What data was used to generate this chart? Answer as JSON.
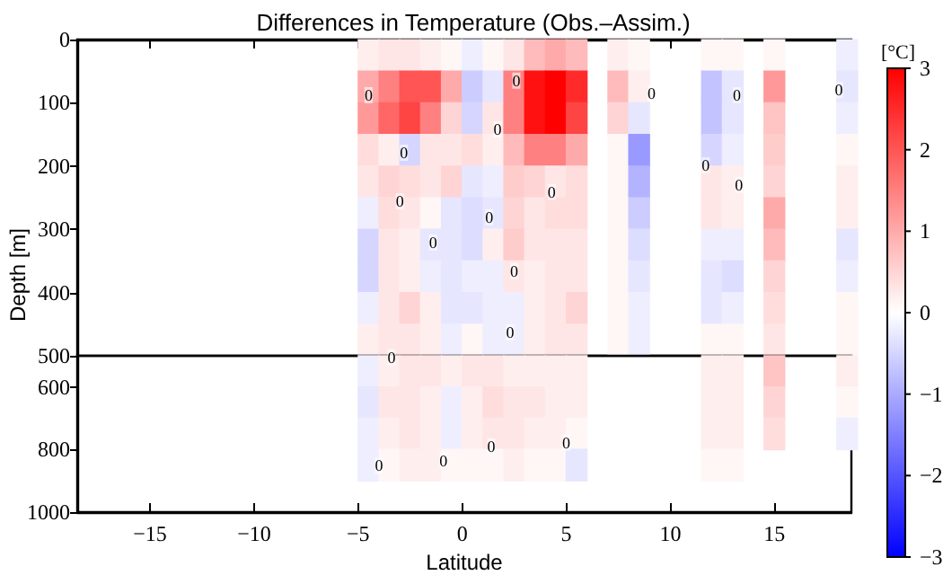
{
  "chart_data": [
    {
      "type": "scatter",
      "title": "Differences in Temperature (Obs.–Assim.)",
      "ylabel": "Depth [m]",
      "clabel": "[°C]",
      "marker": "square",
      "tick_labels": "y",
      "xlim": [
        -18.5,
        18.7
      ],
      "xticks": [
        -15,
        -10,
        -5,
        0,
        5,
        10,
        15
      ],
      "ylim": [
        500,
        0
      ],
      "yticks": [
        0,
        100,
        200,
        300,
        400,
        500
      ],
      "clim": [
        -3,
        3
      ],
      "cticks": [
        -3,
        -1,
        1,
        3
      ],
      "x": [
        -4.5,
        -3.5,
        -2.5,
        -1.5,
        -0.5,
        0.5,
        1.5,
        2.5,
        3.5,
        4.5,
        5.5,
        7.5,
        8.5,
        12,
        13,
        15,
        18.5,
        -4.5,
        -3.5,
        -2.5,
        -1.5,
        -0.5,
        0.5,
        1.5,
        2.5,
        3.5,
        4.5,
        5.5,
        7.5,
        8.5,
        12,
        13,
        15,
        18.5,
        -4.5,
        -3.5,
        -2.5,
        -1.5,
        -0.5,
        0.5,
        1.5,
        2.5,
        3.5,
        4.5,
        5.5,
        7.5,
        8.5,
        12,
        13,
        15,
        18.5,
        -4.5,
        -3.5,
        -2.5,
        -1.5,
        -0.5,
        0.5,
        1.5,
        2.5,
        3.5,
        4.5,
        5.5,
        7.5,
        8.5,
        12,
        13,
        15,
        18.5,
        -4.5,
        -3.5,
        -2.5,
        -1.5,
        -0.5,
        0.5,
        1.5,
        2.5,
        3.5,
        4.5,
        5.5,
        7.5,
        8.5,
        12,
        13,
        15,
        18.5,
        -4.5,
        -3.5,
        -2.5,
        -1.5,
        -0.5,
        0.5,
        1.5,
        2.5,
        3.5,
        4.5,
        5.5,
        7.5,
        8.5,
        12,
        13,
        15,
        18.5,
        -4.5,
        -3.5,
        -2.5,
        -1.5,
        -0.5,
        0.5,
        1.5,
        2.5,
        3.5,
        4.5,
        5.5,
        7.5,
        8.5,
        12,
        13,
        15,
        18.5,
        -4.5,
        -3.5,
        -2.5,
        -1.5,
        -0.5,
        0.5,
        1.5,
        2.5,
        3.5,
        4.5,
        5.5,
        7.5,
        8.5,
        12,
        13,
        15,
        18.5,
        -4.5,
        -3.5,
        -2.5,
        -1.5,
        -0.5,
        0.5,
        1.5,
        2.5,
        3.5,
        4.5,
        5.5,
        7.5,
        8.5,
        12,
        13,
        15,
        18.5,
        -4.5,
        -3.5,
        -2.5,
        -1.5,
        -0.5,
        0.5,
        1.5,
        2.5,
        3.5,
        4.5,
        5.5,
        7.5,
        8.5,
        12,
        13,
        15,
        18.5
      ],
      "values": [
        25,
        25,
        25,
        25,
        25,
        25,
        25,
        25,
        25,
        25,
        25,
        25,
        25,
        25,
        25,
        25,
        25,
        75,
        75,
        75,
        75,
        75,
        75,
        75,
        75,
        75,
        75,
        75,
        75,
        75,
        75,
        75,
        75,
        75,
        125,
        125,
        125,
        125,
        125,
        125,
        125,
        125,
        125,
        125,
        125,
        125,
        125,
        125,
        125,
        125,
        125,
        175,
        175,
        175,
        175,
        175,
        175,
        175,
        175,
        175,
        175,
        175,
        175,
        175,
        175,
        175,
        175,
        175,
        225,
        225,
        225,
        225,
        225,
        225,
        225,
        225,
        225,
        225,
        225,
        225,
        225,
        225,
        225,
        225,
        225,
        275,
        275,
        275,
        275,
        275,
        275,
        275,
        275,
        275,
        275,
        275,
        275,
        275,
        275,
        275,
        275,
        275,
        325,
        325,
        325,
        325,
        325,
        325,
        325,
        325,
        325,
        325,
        325,
        325,
        325,
        325,
        325,
        325,
        325,
        375,
        375,
        375,
        375,
        375,
        375,
        375,
        375,
        375,
        375,
        375,
        375,
        375,
        375,
        375,
        375,
        375,
        425,
        425,
        425,
        425,
        425,
        425,
        425,
        425,
        425,
        425,
        425,
        425,
        425,
        425,
        425,
        425,
        425,
        475,
        475,
        475,
        475,
        475,
        475,
        475,
        475,
        475,
        475,
        475,
        475,
        475,
        475,
        475,
        475,
        475
      ],
      "cvalues": [
        0.2,
        0.3,
        0.3,
        0.2,
        0.1,
        -0.2,
        0.1,
        0.3,
        0.8,
        1,
        0.8,
        0.2,
        0.1,
        0.1,
        0.1,
        0.1,
        -0.2,
        1,
        1.5,
        2,
        2,
        1,
        -0.6,
        -0.3,
        1.5,
        2.8,
        3,
        2.5,
        0.8,
        0.2,
        -0.7,
        -0.3,
        1.2,
        -0.3,
        1.2,
        1.8,
        2.2,
        1.5,
        0.5,
        -0.5,
        0.3,
        1.5,
        2.8,
        3,
        2.2,
        0.5,
        -0.3,
        -0.7,
        -0.3,
        0.7,
        -0.2,
        0.4,
        0.2,
        -0.5,
        0.3,
        0.3,
        0.4,
        0.2,
        0.8,
        1.5,
        1.5,
        1,
        0.1,
        -1.2,
        -0.5,
        -0.2,
        0.6,
        0.1,
        0.3,
        0.5,
        0.4,
        0.3,
        0.5,
        -0.3,
        -0.2,
        0.6,
        0.5,
        0.3,
        0.4,
        0.1,
        -0.9,
        0.3,
        0.2,
        0.5,
        0.2,
        -0.2,
        0.4,
        0.3,
        0.1,
        -0.3,
        -0.4,
        -0.3,
        0.5,
        0.3,
        0.4,
        0.4,
        0.1,
        -0.6,
        0.3,
        0.2,
        1,
        0.2,
        -0.5,
        0.3,
        0.2,
        -0.3,
        -0.3,
        -0.4,
        0.2,
        0.6,
        0.3,
        0.3,
        0.3,
        0.1,
        -0.4,
        -0.2,
        -0.2,
        0.8,
        -0.3,
        -0.5,
        0.3,
        0.2,
        -0.2,
        -0.3,
        -0.2,
        -0.2,
        0.3,
        0.2,
        0.3,
        0.3,
        0.1,
        -0.3,
        -0.3,
        -0.4,
        0.5,
        -0.2,
        -0.2,
        0.3,
        0.5,
        0.2,
        -0.3,
        -0.3,
        -0.2,
        -0.2,
        0.2,
        0.3,
        0.5,
        0.1,
        -0.2,
        -0.3,
        -0.2,
        0.4,
        0.1,
        0.2,
        0.3,
        0.3,
        0.2,
        -0.2,
        0.1,
        -0.2,
        -0.2,
        0.2,
        0.3,
        0.3,
        0.1,
        -0.2,
        0.1,
        0.1,
        0.3,
        0.1
      ],
      "annotations": [
        {
          "text": "0",
          "x": -4.5,
          "y": 88
        },
        {
          "text": "0",
          "x": 2.6,
          "y": 65
        },
        {
          "text": "0",
          "x": 1.7,
          "y": 142
        },
        {
          "text": "0",
          "x": -2.8,
          "y": 179
        },
        {
          "text": "0",
          "x": -3.0,
          "y": 256
        },
        {
          "text": "0",
          "x": 4.3,
          "y": 241
        },
        {
          "text": "0",
          "x": 1.3,
          "y": 281
        },
        {
          "text": "0",
          "x": -1.4,
          "y": 321
        },
        {
          "text": "0",
          "x": 2.5,
          "y": 366
        },
        {
          "text": "0",
          "x": 2.3,
          "y": 463
        },
        {
          "text": "0",
          "x": 9.1,
          "y": 85
        },
        {
          "text": "0",
          "x": 13.2,
          "y": 88
        },
        {
          "text": "0",
          "x": 11.7,
          "y": 199
        },
        {
          "text": "0",
          "x": 13.3,
          "y": 230
        },
        {
          "text": "0",
          "x": 18.1,
          "y": 80
        }
      ]
    },
    {
      "type": "scatter",
      "xlabel": "Latitude",
      "marker": "square",
      "xlim": [
        -18.5,
        18.7
      ],
      "xticks": [
        -15,
        -10,
        -5,
        0,
        5,
        10,
        15
      ],
      "ylim": [
        1000,
        500
      ],
      "yticks": [
        600,
        800,
        1000
      ],
      "clim": [
        -3,
        3
      ],
      "cticks": [
        -2,
        0,
        2
      ],
      "x": [
        -4.5,
        -3.5,
        -2.5,
        -1.5,
        -0.5,
        0.5,
        1.5,
        2.5,
        3.5,
        4.5,
        5.5,
        12,
        13,
        15,
        18.5,
        -4.5,
        -3.5,
        -2.5,
        -1.5,
        -0.5,
        0.5,
        1.5,
        2.5,
        3.5,
        4.5,
        5.5,
        12,
        13,
        15,
        18.5,
        -4.5,
        -3.5,
        -2.5,
        -1.5,
        -0.5,
        0.5,
        1.5,
        2.5,
        3.5,
        4.5,
        5.5,
        12,
        13,
        15,
        18.5,
        -4.5,
        -3.5,
        -2.5,
        -1.5,
        -0.5,
        0.5,
        1.5,
        2.5,
        3.5,
        4.5,
        5.5,
        12,
        13
      ],
      "values": [
        550,
        550,
        550,
        550,
        550,
        550,
        550,
        550,
        550,
        550,
        550,
        550,
        550,
        550,
        550,
        650,
        650,
        650,
        650,
        650,
        650,
        650,
        650,
        650,
        650,
        650,
        650,
        650,
        650,
        650,
        750,
        750,
        750,
        750,
        750,
        750,
        750,
        750,
        750,
        750,
        750,
        750,
        750,
        750,
        750,
        850,
        850,
        850,
        850,
        850,
        850,
        850,
        850,
        850,
        850,
        850,
        850,
        850
      ],
      "cvalues": [
        -0.2,
        0.2,
        0.3,
        0.3,
        0.2,
        0.3,
        0.3,
        0.2,
        0.2,
        0.2,
        0.2,
        0.2,
        0.2,
        0.7,
        0.2,
        -0.3,
        0.3,
        0.3,
        0.2,
        -0.2,
        0.2,
        0.4,
        0.3,
        0.3,
        0.2,
        0.2,
        0.2,
        0.2,
        0.5,
        0.1,
        -0.2,
        0.2,
        0.3,
        0.2,
        -0.2,
        0.2,
        0.3,
        0.3,
        0.2,
        0.2,
        0.1,
        0.2,
        0.2,
        0.4,
        -0.2,
        -0.2,
        0.1,
        0.2,
        0.2,
        0.1,
        0.1,
        0.1,
        0.2,
        0.1,
        0.1,
        -0.3,
        0.1,
        0.1
      ],
      "annotations": [
        {
          "text": "0",
          "x": -3.4,
          "y": 505
        },
        {
          "text": "0",
          "x": 1.4,
          "y": 790
        },
        {
          "text": "0",
          "x": -0.9,
          "y": 835
        },
        {
          "text": "0",
          "x": 5.0,
          "y": 778
        },
        {
          "text": "0",
          "x": -4.0,
          "y": 852
        }
      ]
    }
  ]
}
